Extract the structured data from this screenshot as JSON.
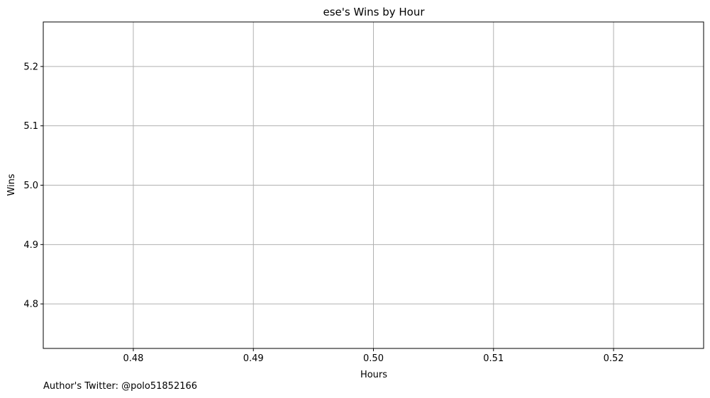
{
  "chart_data": {
    "type": "line",
    "title": "ese's Wins by Hour",
    "xlabel": "Hours",
    "ylabel": "Wins",
    "xlim": [
      0.4725,
      0.5275
    ],
    "ylim": [
      4.725,
      5.275
    ],
    "xticks": [
      0.48,
      0.49,
      0.5,
      0.51,
      0.52
    ],
    "xtick_labels": [
      "0.48",
      "0.49",
      "0.50",
      "0.51",
      "0.52"
    ],
    "yticks": [
      4.8,
      4.9,
      5.0,
      5.1,
      5.2
    ],
    "ytick_labels": [
      "4.8",
      "4.9",
      "5.0",
      "5.1",
      "5.2"
    ],
    "grid": true,
    "series": [
      {
        "x": [],
        "y": []
      }
    ]
  },
  "footer": {
    "credit": "Author's Twitter: @polo51852166"
  },
  "colors": {
    "grid": "#b0b0b0",
    "axis": "#000000",
    "background": "#ffffff"
  }
}
